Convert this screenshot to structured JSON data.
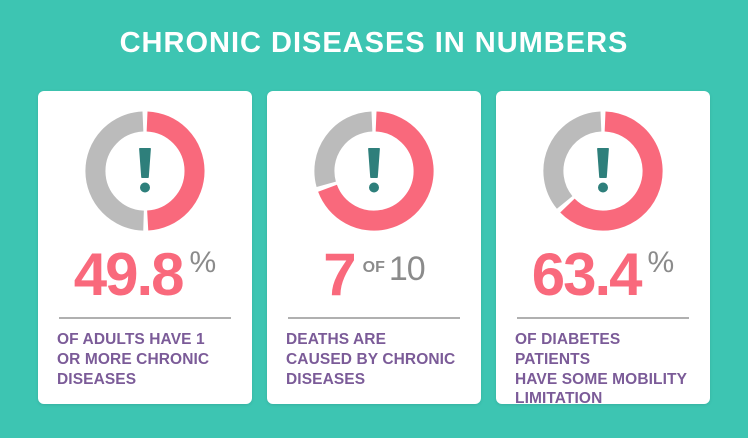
{
  "title": "CHRONIC DISEASES IN NUMBERS",
  "colors": {
    "background_teal": "#3DC5B2",
    "card_white": "#FFFFFF",
    "accent_pink": "#F9697C",
    "ring_gray": "#BBBBBB",
    "icon_teal": "#2E7F7B",
    "caption_purple": "#7B5B98",
    "unit_gray": "#8B8B8B",
    "divider_gray": "#B0B0B0"
  },
  "cards": [
    {
      "value": "49.8",
      "percent_sign": "%",
      "of_label": "",
      "total": "",
      "caption": "OF ADULTS HAVE 1\nOR MORE CHRONIC\nDISEASES"
    },
    {
      "value": "7",
      "percent_sign": "",
      "of_label": "OF",
      "total": "10",
      "caption": "DEATHS ARE\nCAUSED BY CHRONIC\nDISEASES"
    },
    {
      "value": "63.4",
      "percent_sign": "%",
      "of_label": "",
      "total": "",
      "caption": "OF DIABETES PATIENTS\nHAVE SOME MOBILITY\nLIMITATION"
    }
  ],
  "chart_data": [
    {
      "type": "pie",
      "donut": true,
      "title": "49.8% of adults have 1 or more chronic diseases",
      "labels": [
        "highlighted",
        "remainder"
      ],
      "values": [
        49.8,
        50.2
      ],
      "colors": [
        "#F9697C",
        "#BBBBBB"
      ],
      "start_angle_deg": -90,
      "direction": "clockwise",
      "center_icon": "exclamation-icon"
    },
    {
      "type": "pie",
      "donut": true,
      "title": "7 of 10 deaths are caused by chronic diseases",
      "labels": [
        "highlighted",
        "remainder"
      ],
      "values": [
        70,
        30
      ],
      "colors": [
        "#F9697C",
        "#BBBBBB"
      ],
      "start_angle_deg": -90,
      "direction": "clockwise",
      "center_icon": "exclamation-icon"
    },
    {
      "type": "pie",
      "donut": true,
      "title": "63.4% of diabetes patients have some mobility limitation",
      "labels": [
        "highlighted",
        "remainder"
      ],
      "values": [
        63.4,
        36.6
      ],
      "colors": [
        "#F9697C",
        "#BBBBBB"
      ],
      "start_angle_deg": -90,
      "direction": "clockwise",
      "center_icon": "exclamation-icon"
    }
  ]
}
